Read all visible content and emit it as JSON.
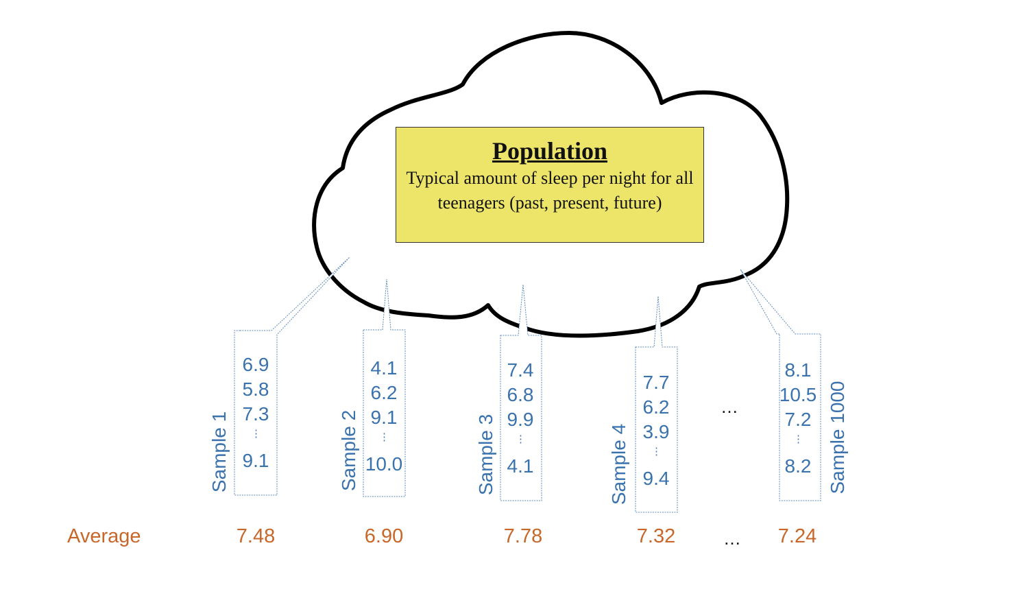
{
  "population": {
    "title": "Population",
    "description": "Typical amount of sleep per night for all teenagers (past, present, future)"
  },
  "samples": [
    {
      "label": "Sample 1",
      "values": [
        "6.9",
        "5.8",
        "7.3",
        "⋮",
        "9.1"
      ],
      "average": "7.48"
    },
    {
      "label": "Sample 2",
      "values": [
        "4.1",
        "6.2",
        "9.1",
        "⋮",
        "10.0"
      ],
      "average": "6.90"
    },
    {
      "label": "Sample 3",
      "values": [
        "7.4",
        "6.8",
        "9.9",
        "⋮",
        "4.1"
      ],
      "average": "7.78"
    },
    {
      "label": "Sample 4",
      "values": [
        "7.7",
        "6.2",
        "3.9",
        "⋮",
        "9.4"
      ],
      "average": "7.32"
    },
    {
      "label": "Sample 1000",
      "values": [
        "8.1",
        "10.5",
        "7.2",
        "⋮",
        "8.2"
      ],
      "average": "7.24"
    }
  ],
  "ellipsis": "…",
  "average_label": "Average",
  "colors": {
    "sample_blue": "#3a72ad",
    "average_orange": "#c8672a",
    "box_yellow": "#ede46a"
  }
}
